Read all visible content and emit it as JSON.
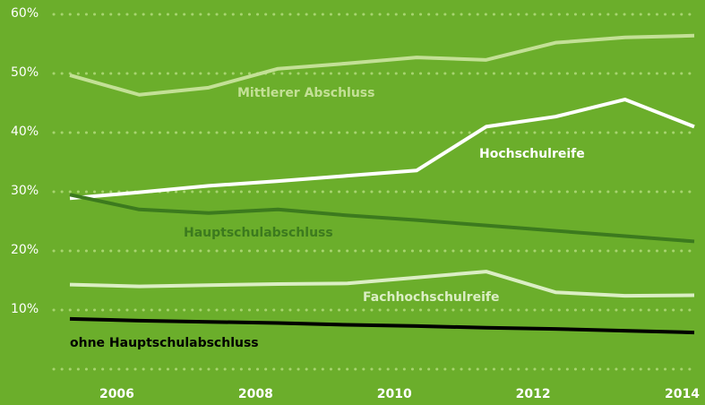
{
  "chart_data": {
    "type": "line",
    "x": [
      2005,
      2006,
      2007,
      2008,
      2009,
      2010,
      2011,
      2012,
      2013,
      2014
    ],
    "xlim": [
      2005,
      2014
    ],
    "xticks": [
      2006,
      2008,
      2010,
      2012,
      2014
    ],
    "ylim": [
      0,
      60
    ],
    "yticks": [
      {
        "value": 10,
        "label": "10%"
      },
      {
        "value": 20,
        "label": "20%"
      },
      {
        "value": 30,
        "label": "30%"
      },
      {
        "value": 40,
        "label": "40%"
      },
      {
        "value": 50,
        "label": "50%"
      },
      {
        "value": 60,
        "label": "60%"
      }
    ],
    "grid": true,
    "series": [
      {
        "name": "Mittlerer Abschluss",
        "color": "#c3e096",
        "values": [
          49.7,
          46.4,
          47.6,
          50.8,
          51.7,
          52.7,
          52.3,
          55.2,
          56.1,
          56.4
        ]
      },
      {
        "name": "Hochschulreife",
        "color": "#ffffff",
        "values": [
          28.9,
          29.9,
          31.0,
          31.8,
          32.7,
          33.6,
          41.0,
          42.7,
          45.6,
          41.0
        ]
      },
      {
        "name": "Hauptschulabschluss",
        "color": "#3c7a1e",
        "values": [
          29.5,
          27.0,
          26.4,
          27.0,
          26.0,
          25.2,
          24.3,
          23.4,
          22.5,
          21.6
        ]
      },
      {
        "name": "Fachhochschulreife",
        "color": "#dbeec4",
        "values": [
          14.3,
          14.0,
          14.2,
          14.4,
          14.5,
          15.5,
          16.5,
          13.0,
          12.4,
          12.5
        ]
      },
      {
        "name": "ohne Hauptschulabschluss",
        "color": "#000000",
        "values": [
          8.5,
          8.2,
          8.0,
          7.8,
          7.5,
          7.3,
          7.0,
          6.8,
          6.5,
          6.2
        ]
      }
    ]
  }
}
